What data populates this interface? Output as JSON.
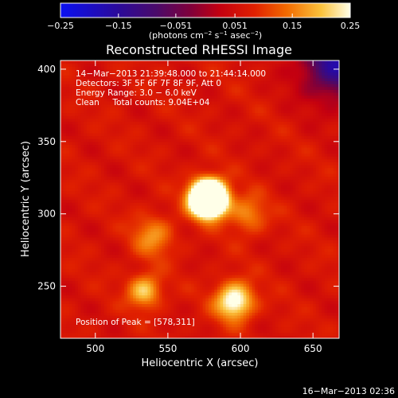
{
  "chart_data": {
    "type": "heatmap",
    "title": "Reconstructed RHESSI Image",
    "xlabel": "Heliocentric X (arcsec)",
    "ylabel": "Heliocentric Y (arcsec)",
    "xlim": [
      476,
      668
    ],
    "ylim": [
      214,
      406
    ],
    "x_ticks": [
      500,
      550,
      600,
      650
    ],
    "y_ticks": [
      250,
      300,
      350,
      400
    ],
    "x_tick_labels": [
      "500",
      "550",
      "600",
      "650"
    ],
    "y_tick_labels": [
      "250",
      "300",
      "350",
      "400"
    ],
    "colorbar": {
      "range": [
        -0.25,
        0.25
      ],
      "ticks": [
        -0.25,
        -0.15,
        -0.051,
        0.051,
        0.15,
        0.25
      ],
      "tick_labels": [
        "−0.25",
        "−0.15",
        "−0.051",
        "0.051",
        "0.15",
        "0.25"
      ],
      "units_parts": [
        "(photons cm",
        "−2",
        " s",
        "−1",
        " asec",
        "−2",
        ")"
      ]
    },
    "annotations": [
      "14−Mar−2013 21:39:48.000 to 21:44:14.000",
      "Detectors: 3F 5F 6F 7F 8F 9F, Att 0",
      "Energy Range: 3.0 − 6.0 keV",
      "Clean     Total counts: 9.04E+04"
    ],
    "peak_label": "Position of Peak = [578,311]",
    "peak": {
      "x": 578,
      "y": 311,
      "value": 0.25
    },
    "sources": [
      {
        "x": 578,
        "y": 311,
        "amp": 0.7,
        "sigma": 8
      },
      {
        "x": 596,
        "y": 240,
        "amp": 0.22,
        "sigma": 9
      },
      {
        "x": 534,
        "y": 247,
        "amp": 0.15,
        "sigma": 8
      },
      {
        "x": 540,
        "y": 285,
        "amp": 0.1,
        "sigma": 10
      },
      {
        "x": 605,
        "y": 300,
        "amp": 0.1,
        "sigma": 9
      }
    ],
    "background_level": 0.065,
    "footer": "16−Mar−2013 02:36"
  }
}
